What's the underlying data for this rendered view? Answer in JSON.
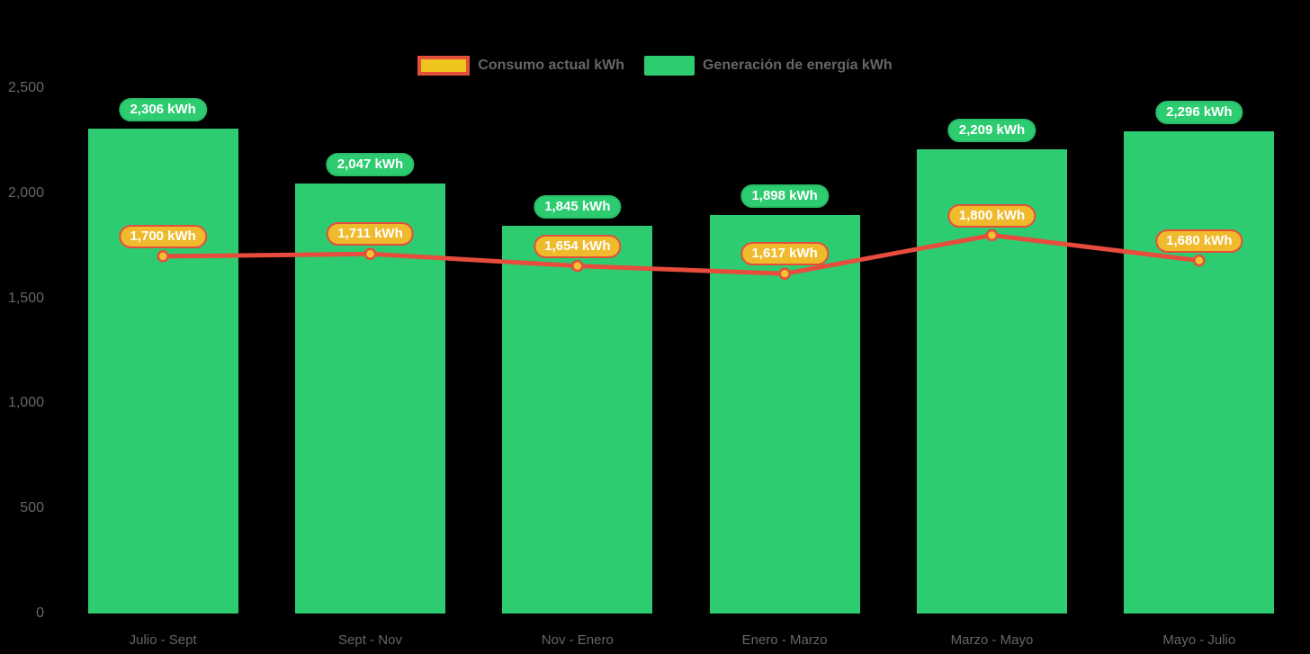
{
  "colors": {
    "background": "#000000",
    "bar_green": "#2ecc71",
    "bar_pill_bg": "#2ecc71",
    "bar_pill_border": "#29bd68",
    "line_red": "#e74c3c",
    "marker_gold": "#f1c232",
    "line_pill_bg": "#f0ba2d",
    "line_pill_border": "#e2503c",
    "axis_text": "#666666",
    "legend_text": "#666666",
    "pill_text": "#ffffff"
  },
  "legend": {
    "items": [
      {
        "label": "Consumo actual kWh",
        "swatch_color": "#eec41d",
        "swatch_border": "#e2503c"
      },
      {
        "label": "Generación de energía kWh",
        "swatch_color": "#2ecc71",
        "swatch_border": ""
      }
    ]
  },
  "y_axis": {
    "tick_labels": [
      "0",
      "500",
      "1,000",
      "1,500",
      "2,000",
      "2,500"
    ],
    "tick_values": [
      0,
      500,
      1000,
      1500,
      2000,
      2500
    ]
  },
  "chart_data": {
    "type": "bar",
    "subtype": "column-with-line-overlay",
    "categories": [
      "Julio - Sept",
      "Sept - Nov",
      "Nov - Enero",
      "Enero - Marzo",
      "Marzo - Mayo",
      "Mayo - Julio"
    ],
    "series": [
      {
        "name": "Generación de energía kWh",
        "type": "bar",
        "color": "#2ecc71",
        "values": [
          2306,
          2047,
          1845,
          1898,
          2209,
          2296
        ],
        "labels": [
          "2,306 kWh",
          "2,047 kWh",
          "1,845 kWh",
          "1,898 kWh",
          "2,209 kWh",
          "2,296 kWh"
        ]
      },
      {
        "name": "Consumo actual kWh",
        "type": "line",
        "color": "#e74c3c",
        "marker_color": "#f1c232",
        "values": [
          1700,
          1711,
          1654,
          1617,
          1800,
          1680
        ],
        "labels": [
          "1,700 kWh",
          "1,711 kWh",
          "1,654 kWh",
          "1,617 kWh",
          "1,800 kWh",
          "1,680 kWh"
        ]
      }
    ],
    "title": "",
    "xlabel": "",
    "ylabel": "",
    "ylim": [
      0,
      2500
    ],
    "grid": false,
    "legend_position": "top-center"
  }
}
